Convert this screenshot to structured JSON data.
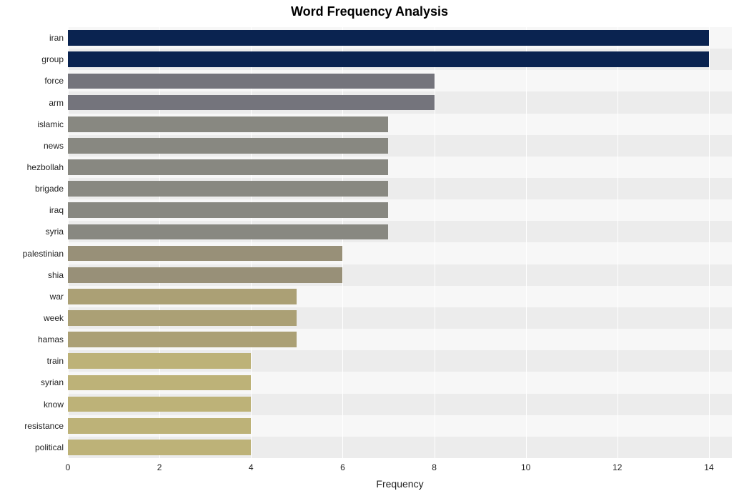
{
  "chart": {
    "title": "Word Frequency Analysis",
    "title_fontsize": 18,
    "title_fontweight": 700,
    "title_color": "#000000",
    "type": "bar",
    "orientation": "horizontal",
    "background_color": "#ffffff",
    "plot_bg_color": "#f7f7f7",
    "band_alt_color": "#ececec",
    "gridline_color": "#ffffff",
    "xaxis": {
      "title": "Frequency",
      "title_fontsize": 14,
      "title_color": "#222222",
      "min": 0,
      "max": 14.5,
      "ticks": [
        0,
        2,
        4,
        6,
        8,
        10,
        12,
        14
      ],
      "tick_fontsize": 12,
      "tick_color": "#222222"
    },
    "yaxis": {
      "tick_fontsize": 12,
      "tick_color": "#222222"
    },
    "bar_height_ratio": 0.72,
    "series": [
      {
        "label": "iran",
        "value": 14,
        "color": "#0a2350"
      },
      {
        "label": "group",
        "value": 14,
        "color": "#0a2350"
      },
      {
        "label": "force",
        "value": 8,
        "color": "#74747c"
      },
      {
        "label": "arm",
        "value": 8,
        "color": "#74747c"
      },
      {
        "label": "islamic",
        "value": 7,
        "color": "#888881"
      },
      {
        "label": "news",
        "value": 7,
        "color": "#888881"
      },
      {
        "label": "hezbollah",
        "value": 7,
        "color": "#888881"
      },
      {
        "label": "brigade",
        "value": 7,
        "color": "#888881"
      },
      {
        "label": "iraq",
        "value": 7,
        "color": "#888881"
      },
      {
        "label": "syria",
        "value": 7,
        "color": "#888881"
      },
      {
        "label": "palestinian",
        "value": 6,
        "color": "#989078"
      },
      {
        "label": "shia",
        "value": 6,
        "color": "#989078"
      },
      {
        "label": "war",
        "value": 5,
        "color": "#aba075"
      },
      {
        "label": "week",
        "value": 5,
        "color": "#aba075"
      },
      {
        "label": "hamas",
        "value": 5,
        "color": "#aba075"
      },
      {
        "label": "train",
        "value": 4,
        "color": "#bdb278"
      },
      {
        "label": "syrian",
        "value": 4,
        "color": "#bdb278"
      },
      {
        "label": "know",
        "value": 4,
        "color": "#bdb278"
      },
      {
        "label": "resistance",
        "value": 4,
        "color": "#bdb278"
      },
      {
        "label": "political",
        "value": 4,
        "color": "#bdb278"
      }
    ]
  }
}
